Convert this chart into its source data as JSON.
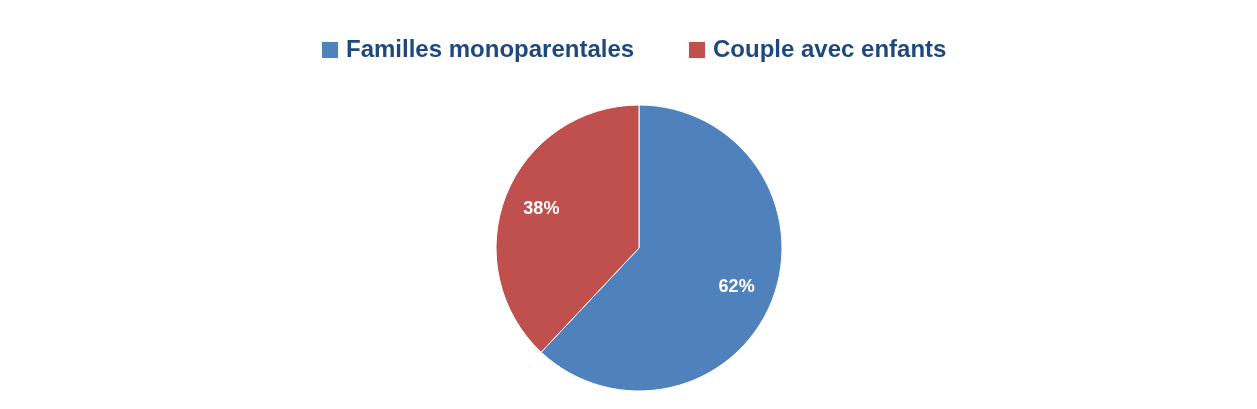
{
  "chart_data": {
    "type": "pie",
    "categories": [
      "Familles monoparentales",
      "Couple avec enfants"
    ],
    "values": [
      62,
      38
    ],
    "colors": [
      "#4f81bd",
      "#c0504d"
    ],
    "legend": "top",
    "value_labels": [
      "62%",
      "38%"
    ]
  }
}
